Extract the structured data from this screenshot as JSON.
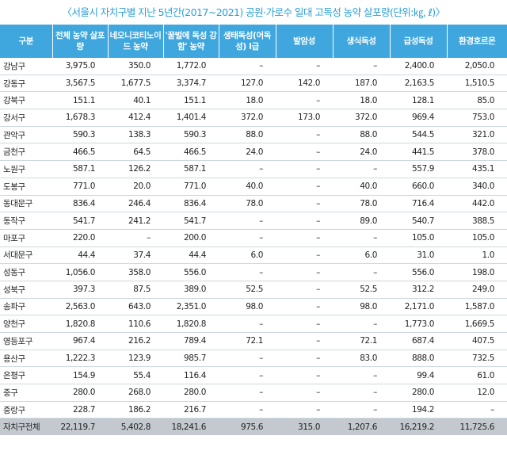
{
  "title": "〈서울시 자치구별 지난 5년간(2017~2021) 공원·가로수 일대 고독성 농약 살포량(단위:㎏, ℓ)〉",
  "headers": [
    "구분",
    "전체 농약 살포량",
    "네오니코티노이드 농약",
    "'꿀벌에 독성 강함' 농약",
    "생태독성(어독성) I급",
    "발암성",
    "생식독성",
    "급성독성",
    "환경호르몬"
  ],
  "rows": [
    [
      "강남구",
      "3,975.0",
      "350.0",
      "1,772.0",
      "–",
      "–",
      "–",
      "2,400.0",
      "2,050.0"
    ],
    [
      "강동구",
      "3,567.5",
      "1,677.5",
      "3,374.7",
      "127.0",
      "142.0",
      "187.0",
      "2,163.5",
      "1,510.5"
    ],
    [
      "강북구",
      "151.1",
      "40.1",
      "151.1",
      "18.0",
      "–",
      "18.0",
      "128.1",
      "85.0"
    ],
    [
      "강서구",
      "1,678.3",
      "412.4",
      "1,401.4",
      "372.0",
      "173.0",
      "372.0",
      "969.4",
      "753.0"
    ],
    [
      "관악구",
      "590.3",
      "138.3",
      "590.3",
      "88.0",
      "–",
      "88.0",
      "544.5",
      "321.0"
    ],
    [
      "금천구",
      "466.5",
      "64.5",
      "466.5",
      "24.0",
      "–",
      "24.0",
      "441.5",
      "378.0"
    ],
    [
      "노원구",
      "587.1",
      "126.2",
      "587.1",
      "–",
      "–",
      "–",
      "557.9",
      "435.1"
    ],
    [
      "도봉구",
      "771.0",
      "20.0",
      "771.0",
      "40.0",
      "–",
      "40.0",
      "660.0",
      "340.0"
    ],
    [
      "동대문구",
      "836.4",
      "246.4",
      "836.4",
      "78.0",
      "–",
      "78.0",
      "716.4",
      "442.0"
    ],
    [
      "동작구",
      "541.7",
      "241.2",
      "541.7",
      "–",
      "–",
      "89.0",
      "540.7",
      "388.5"
    ],
    [
      "마포구",
      "220.0",
      "–",
      "200.0",
      "–",
      "–",
      "–",
      "105.0",
      "105.0"
    ],
    [
      "서대문구",
      "44.4",
      "37.4",
      "44.4",
      "6.0",
      "–",
      "6.0",
      "31.0",
      "1.0"
    ],
    [
      "성동구",
      "1,056.0",
      "358.0",
      "556.0",
      "–",
      "–",
      "–",
      "556.0",
      "198.0"
    ],
    [
      "성북구",
      "397.3",
      "87.5",
      "389.0",
      "52.5",
      "–",
      "52.5",
      "312.2",
      "249.0"
    ],
    [
      "송파구",
      "2,563.0",
      "643.0",
      "2,351.0",
      "98.0",
      "–",
      "98.0",
      "2,171.0",
      "1,587.0"
    ],
    [
      "양천구",
      "1,820.8",
      "110.6",
      "1,820.8",
      "–",
      "–",
      "–",
      "1,773.0",
      "1,669.5"
    ],
    [
      "영등포구",
      "967.4",
      "216.2",
      "789.4",
      "72.1",
      "–",
      "72.1",
      "687.4",
      "407.5"
    ],
    [
      "용산구",
      "1,222.3",
      "123.9",
      "985.7",
      "–",
      "–",
      "83.0",
      "888.0",
      "732.5"
    ],
    [
      "은평구",
      "154.9",
      "55.4",
      "116.4",
      "–",
      "–",
      "–",
      "99.4",
      "61.0"
    ],
    [
      "중구",
      "280.0",
      "268.0",
      "280.0",
      "–",
      "–",
      "–",
      "280.0",
      "12.0"
    ],
    [
      "중랑구",
      "228.7",
      "186.2",
      "216.7",
      "–",
      "–",
      "–",
      "194.2",
      "–"
    ]
  ],
  "total": [
    "자치구전체",
    "22,119.7",
    "5,402.8",
    "18,241.6",
    "975.6",
    "315.0",
    "1,207.6",
    "16,219.2",
    "11,725.6"
  ],
  "colors": {
    "title": "#2a9fd8",
    "header_bg": "#3fa7de",
    "header_text": "#ffffff",
    "total_bg": "#c3c9cf",
    "row_border": "#cfd8e0"
  }
}
